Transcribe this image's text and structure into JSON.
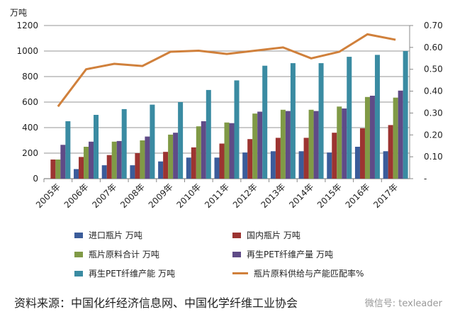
{
  "chart_data": {
    "type": "bar",
    "yunit": "万吨",
    "categories": [
      "2005年",
      "2006年",
      "2007年",
      "2008年",
      "2009年",
      "2010年",
      "2011年",
      "2012年",
      "2013年",
      "2014年",
      "2015年",
      "2016年",
      "2017年"
    ],
    "ylim": [
      0,
      1200
    ],
    "yticks": [
      "0",
      "200",
      "400",
      "600",
      "800",
      "1000",
      "1200"
    ],
    "y2lim": [
      0,
      0.7
    ],
    "y2ticks": [
      "-",
      "0.10",
      "0.20",
      "0.30",
      "0.40",
      "0.50",
      "0.60",
      "0.70"
    ],
    "grid": true,
    "legend_position": "bottom",
    "series": [
      {
        "name": "进口瓶片 万吨",
        "type": "bar",
        "color": "#3b5c9a",
        "values": [
          0,
          75,
          105,
          105,
          135,
          165,
          165,
          205,
          215,
          215,
          205,
          250,
          215
        ]
      },
      {
        "name": "国内瓶片 万吨",
        "type": "bar",
        "color": "#9c3431",
        "values": [
          150,
          170,
          185,
          200,
          210,
          245,
          275,
          310,
          320,
          320,
          360,
          395,
          420
        ]
      },
      {
        "name": "瓶片原料合计 万吨",
        "type": "bar",
        "color": "#809a46",
        "values": [
          150,
          250,
          290,
          300,
          345,
          410,
          440,
          510,
          540,
          540,
          565,
          640,
          635
        ]
      },
      {
        "name": "再生PET纤维产量 万吨",
        "type": "bar",
        "color": "#5f4b87",
        "values": [
          265,
          290,
          295,
          330,
          360,
          450,
          435,
          525,
          530,
          530,
          550,
          650,
          690
        ]
      },
      {
        "name": "再生PET纤维产能 万吨",
        "type": "bar",
        "color": "#3a8ba2",
        "values": [
          450,
          500,
          545,
          580,
          600,
          695,
          770,
          885,
          905,
          905,
          955,
          970,
          1000
        ]
      },
      {
        "name": "瓶片原料供给与产能匹配率%",
        "type": "line",
        "axis": "right",
        "color": "#d0803b",
        "values": [
          0.33,
          0.5,
          0.525,
          0.515,
          0.58,
          0.585,
          0.57,
          0.585,
          0.6,
          0.55,
          0.58,
          0.66,
          0.635
        ]
      }
    ]
  },
  "source": "资料来源：中国化纤经济信息网、中国化学纤维工业协会",
  "watermark": "微信号: texleader"
}
